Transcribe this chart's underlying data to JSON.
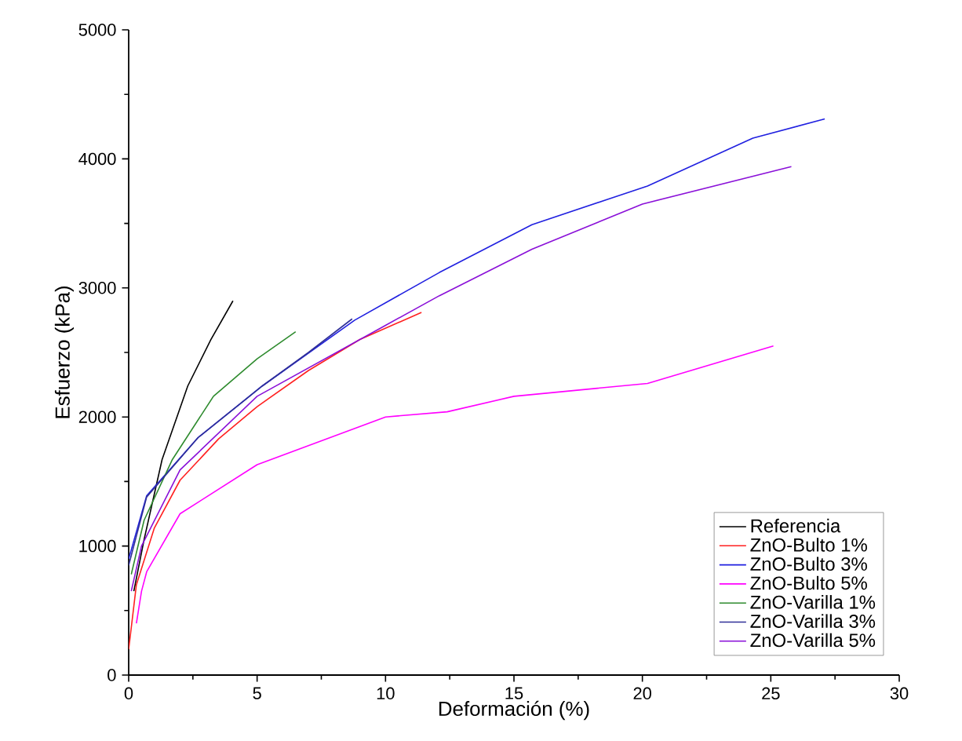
{
  "chart_data": {
    "type": "line",
    "xlabel": "Deformación (%)",
    "ylabel": "Esfuerzo (kPa)",
    "xlim": [
      0,
      30
    ],
    "ylim": [
      0,
      5000
    ],
    "xticks": [
      0,
      5,
      10,
      15,
      20,
      25,
      30
    ],
    "yticks": [
      0,
      1000,
      2000,
      3000,
      4000,
      5000
    ],
    "grid": false,
    "legend": "bottom right",
    "marker": "none",
    "line_style": "solid",
    "series": [
      {
        "name": "Referencia",
        "color": "#000000",
        "x": [
          0.2,
          0.6,
          1.3,
          2.3,
          3.2,
          4.06
        ],
        "values": [
          650,
          1050,
          1670,
          2240,
          2600,
          2900
        ]
      },
      {
        "name": "ZnO-Bulto 1%",
        "color": "#ff2020",
        "x": [
          0,
          0.3,
          1,
          2,
          3.5,
          5,
          7,
          9,
          11.4
        ],
        "values": [
          200,
          700,
          1140,
          1510,
          1830,
          2080,
          2360,
          2600,
          2810
        ]
      },
      {
        "name": "ZnO-Bulto 3%",
        "color": "#2020e0",
        "x": [
          0,
          0.7,
          2.7,
          5.2,
          8.8,
          12.1,
          15.7,
          20.2,
          24.3,
          27.1
        ],
        "values": [
          900,
          1390,
          1840,
          2240,
          2750,
          3120,
          3490,
          3790,
          4160,
          4310
        ]
      },
      {
        "name": "ZnO-Bulto 5%",
        "color": "#ff00ff",
        "x": [
          0.3,
          0.5,
          0.7,
          2,
          5,
          10,
          12.4,
          15,
          20.2,
          25.1
        ],
        "values": [
          400,
          650,
          800,
          1250,
          1630,
          2000,
          2040,
          2160,
          2260,
          2550
        ]
      },
      {
        "name": "ZnO-Varilla 1%",
        "color": "#2e8b2e",
        "x": [
          0.1,
          0.6,
          1.7,
          3.3,
          5,
          6.5
        ],
        "values": [
          780,
          1200,
          1670,
          2160,
          2450,
          2660
        ]
      },
      {
        "name": "ZnO-Varilla 3%",
        "color": "#303098",
        "x": [
          0,
          0.7,
          2.7,
          5.2,
          7,
          8.7
        ],
        "values": [
          850,
          1380,
          1840,
          2240,
          2500,
          2760
        ]
      },
      {
        "name": "ZnO-Varilla 5%",
        "color": "#8a10d8",
        "x": [
          0.1,
          0.5,
          2,
          5,
          10,
          12.1,
          15.7,
          20,
          25.8
        ],
        "values": [
          650,
          1000,
          1590,
          2160,
          2710,
          2940,
          3300,
          3650,
          3940
        ]
      }
    ]
  }
}
